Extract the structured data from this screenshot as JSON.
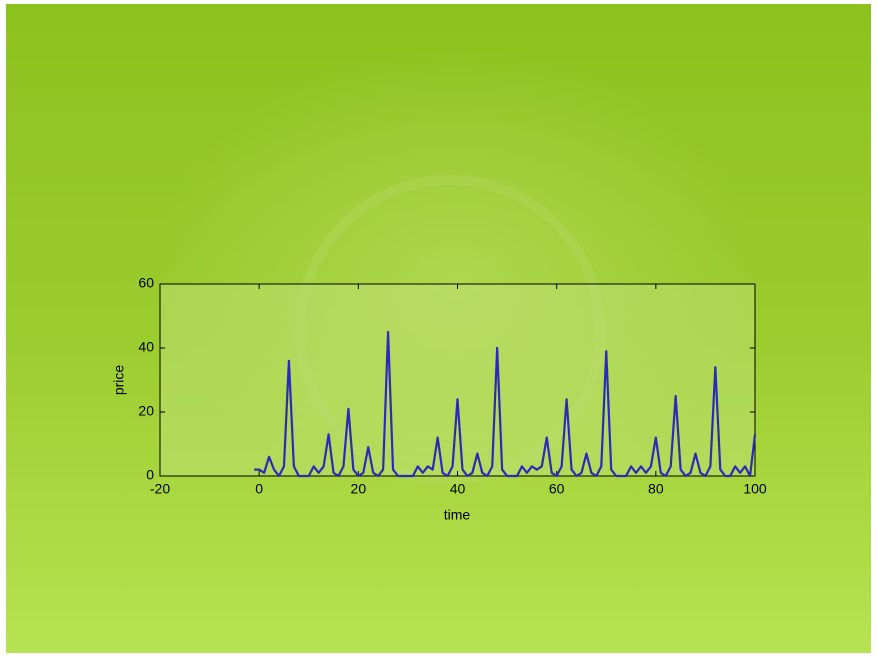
{
  "chart_data": {
    "type": "line",
    "xlabel": "time",
    "ylabel": "price",
    "x": [
      -1,
      0,
      1,
      2,
      3,
      4,
      5,
      6,
      7,
      8,
      9,
      10,
      11,
      12,
      13,
      14,
      15,
      16,
      17,
      18,
      19,
      20,
      21,
      22,
      23,
      24,
      25,
      26,
      27,
      28,
      29,
      30,
      31,
      32,
      33,
      34,
      35,
      36,
      37,
      38,
      39,
      40,
      41,
      42,
      43,
      44,
      45,
      46,
      47,
      48,
      49,
      50,
      51,
      52,
      53,
      54,
      55,
      56,
      57,
      58,
      59,
      60,
      61,
      62,
      63,
      64,
      65,
      66,
      67,
      68,
      69,
      70,
      71,
      72,
      73,
      74,
      75,
      76,
      77,
      78,
      79,
      80,
      81,
      82,
      83,
      84,
      85,
      86,
      87,
      88,
      89,
      90,
      91,
      92,
      93,
      94,
      95,
      96,
      97,
      98,
      99,
      100
    ],
    "series": [
      {
        "color": "#2b2bb8",
        "values": [
          2,
          2,
          1,
          6,
          2,
          0,
          3,
          36,
          3,
          0,
          0,
          0,
          3,
          1,
          3,
          13,
          1,
          0,
          3,
          21,
          2,
          0,
          1,
          9,
          1,
          0,
          2,
          45,
          2,
          0,
          0,
          0,
          0,
          3,
          1,
          3,
          2,
          12,
          1,
          0,
          3,
          24,
          2,
          0,
          1,
          7,
          1,
          0,
          3,
          40,
          2,
          0,
          0,
          0,
          3,
          1,
          3,
          2,
          3,
          12,
          1,
          0,
          3,
          24,
          2,
          0,
          1,
          7,
          1,
          0,
          3,
          39,
          2,
          0,
          0,
          0,
          3,
          1,
          3,
          1,
          3,
          12,
          1,
          0,
          3,
          25,
          2,
          0,
          1,
          7,
          1,
          0,
          3,
          34,
          2,
          0,
          0,
          3,
          1,
          3,
          0,
          13
        ]
      }
    ],
    "xlim": [
      -20,
      100
    ],
    "xticks": [
      -20,
      0,
      20,
      40,
      60,
      80,
      100
    ],
    "ylim": [
      0,
      60
    ],
    "yticks": [
      0,
      20,
      40,
      60
    ],
    "grid": false
  }
}
